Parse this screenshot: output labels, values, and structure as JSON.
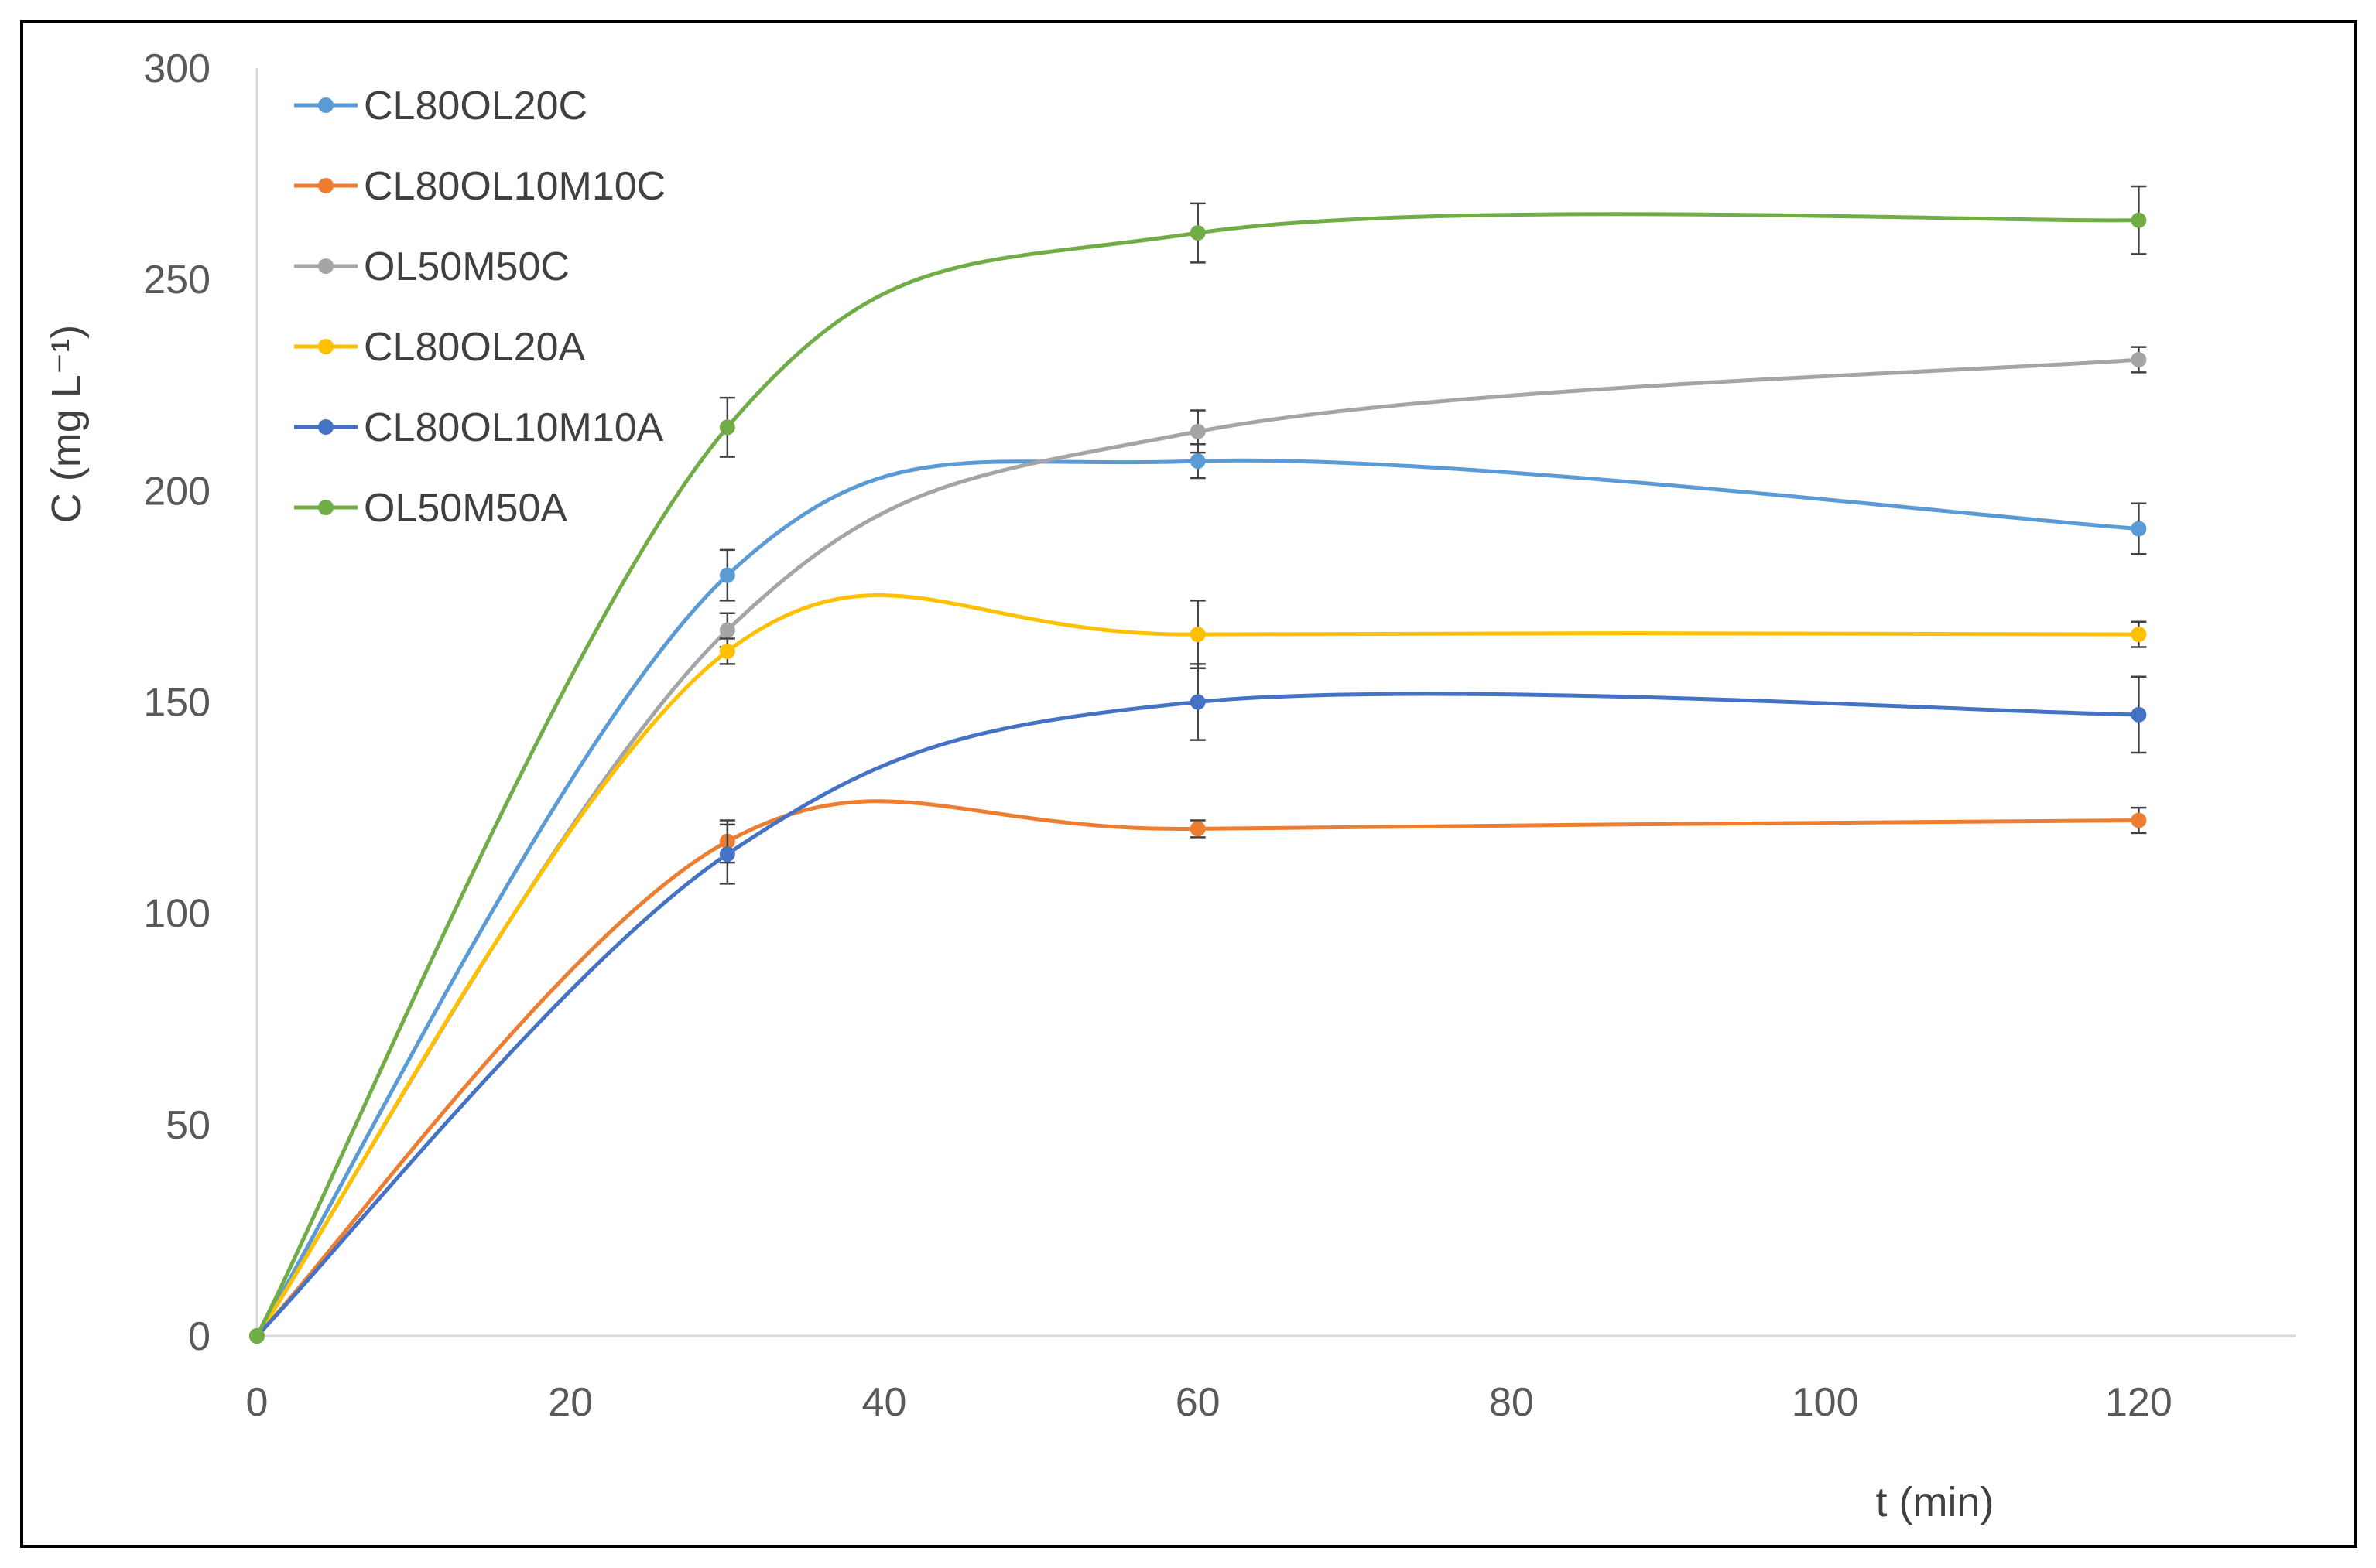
{
  "chart_data": {
    "type": "line",
    "title": "",
    "xlabel": "t (min)",
    "ylabel": "C (mg L⁻¹)",
    "xlim": [
      0,
      130
    ],
    "ylim": [
      0,
      300
    ],
    "x_ticks": [
      0,
      20,
      40,
      60,
      80,
      100,
      120
    ],
    "y_ticks": [
      0,
      50,
      100,
      150,
      200,
      250,
      300
    ],
    "grid": false,
    "legend_position": "top-left",
    "x": [
      0,
      30,
      60,
      120
    ],
    "series": [
      {
        "name": "CL80OL20C",
        "color": "#5B9BD5",
        "values": [
          0,
          180,
          207,
          191
        ],
        "errors": [
          0,
          6,
          4,
          6
        ]
      },
      {
        "name": "CL80OL10M10C",
        "color": "#ED7D31",
        "values": [
          0,
          117,
          120,
          122
        ],
        "errors": [
          0,
          5,
          2,
          3
        ]
      },
      {
        "name": "OL50M50C",
        "color": "#A5A5A5",
        "values": [
          0,
          167,
          214,
          231
        ],
        "errors": [
          0,
          4,
          5,
          3
        ]
      },
      {
        "name": "CL80OL20A",
        "color": "#FFC000",
        "values": [
          0,
          162,
          166,
          166
        ],
        "errors": [
          0,
          3,
          8,
          3
        ]
      },
      {
        "name": "CL80OL10M10A",
        "color": "#4472C4",
        "values": [
          0,
          114,
          150,
          147
        ],
        "errors": [
          0,
          7,
          9,
          9
        ]
      },
      {
        "name": "OL50M50A",
        "color": "#70AD47",
        "values": [
          0,
          215,
          261,
          264
        ],
        "errors": [
          0,
          7,
          7,
          8
        ]
      }
    ]
  }
}
